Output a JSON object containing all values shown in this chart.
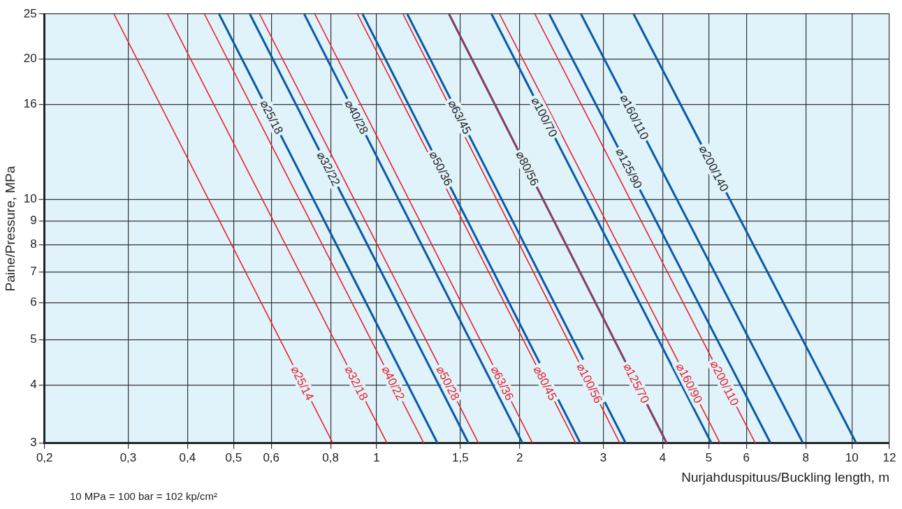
{
  "chart_data": {
    "type": "line",
    "xlabel": "Nurjahduspituus/Buckling length, m",
    "ylabel": "Paine/Pressure, MPa",
    "annotations": [
      "10 MPa = 100 bar = 102 kp/cm²"
    ],
    "log": "xy",
    "grid": true,
    "legend": false,
    "marker": "none",
    "line_style": "solid",
    "xlim": [
      0.2,
      12
    ],
    "ylim": [
      3,
      25
    ],
    "xticks": [
      {
        "value": 0.2,
        "label": "0,2"
      },
      {
        "value": 0.3,
        "label": "0,3"
      },
      {
        "value": 0.4,
        "label": "0,4"
      },
      {
        "value": 0.5,
        "label": "0,5"
      },
      {
        "value": 0.6,
        "label": "0,6"
      },
      {
        "value": 0.8,
        "label": "0,8"
      },
      1,
      {
        "value": 1.5,
        "label": "1,5"
      },
      2,
      3,
      4,
      5,
      6,
      8,
      10,
      12
    ],
    "yticks": [
      3,
      4,
      5,
      6,
      7,
      8,
      9,
      10,
      16,
      20,
      25
    ],
    "series": [
      {
        "name": "⌀25/18",
        "color": "#0a5aa5",
        "x": [
          0.466,
          1.343
        ],
        "values": [
          25,
          3
        ]
      },
      {
        "name": "⌀32/22",
        "color": "#0a5aa5",
        "x": [
          0.541,
          1.561
        ],
        "values": [
          25,
          3
        ]
      },
      {
        "name": "⌀40/28",
        "color": "#0a5aa5",
        "x": [
          0.704,
          2.028
        ],
        "values": [
          25,
          3
        ]
      },
      {
        "name": "⌀50/36",
        "color": "#0a5aa5",
        "x": [
          0.934,
          2.684
        ],
        "values": [
          25,
          3
        ]
      },
      {
        "name": "⌀63/45",
        "color": "#0a5aa5",
        "x": [
          1.16,
          3.344
        ],
        "values": [
          25,
          3
        ]
      },
      {
        "name": "⌀80/56",
        "color": "#0a5aa5",
        "x": [
          1.42,
          4.079
        ],
        "values": [
          25,
          3
        ]
      },
      {
        "name": "⌀100/70",
        "color": "#0a5aa5",
        "x": [
          1.745,
          5.066
        ],
        "values": [
          25,
          3
        ]
      },
      {
        "name": "⌀125/90",
        "color": "#0a5aa5",
        "x": [
          2.308,
          6.746
        ],
        "values": [
          25,
          3
        ]
      },
      {
        "name": "⌀160/110",
        "color": "#0a5aa5",
        "x": [
          2.692,
          7.896
        ],
        "values": [
          25,
          3
        ]
      },
      {
        "name": "⌀200/140",
        "color": "#0a5aa5",
        "x": [
          3.474,
          10.22
        ],
        "values": [
          25,
          3
        ]
      },
      {
        "name": "⌀25/14",
        "color": "#e8202a",
        "x": [
          0.28,
          0.809
        ],
        "values": [
          25,
          3
        ]
      },
      {
        "name": "⌀32/18",
        "color": "#e8202a",
        "x": [
          0.363,
          1.052
        ],
        "values": [
          25,
          3
        ]
      },
      {
        "name": "⌀40/22",
        "color": "#e8202a",
        "x": [
          0.434,
          1.257
        ],
        "values": [
          25,
          3
        ]
      },
      {
        "name": "⌀50/28",
        "color": "#e8202a",
        "x": [
          0.567,
          1.639
        ],
        "values": [
          25,
          3
        ]
      },
      {
        "name": "⌀63/36",
        "color": "#e8202a",
        "x": [
          0.741,
          2.129
        ],
        "values": [
          25,
          3
        ]
      },
      {
        "name": "⌀80/45",
        "color": "#e8202a",
        "x": [
          0.911,
          2.626
        ],
        "values": [
          25,
          3
        ]
      },
      {
        "name": "⌀100/56",
        "color": "#e8202a",
        "x": [
          1.136,
          3.25
        ],
        "values": [
          25,
          3
        ]
      },
      {
        "name": "⌀125/70",
        "color": "#e8202a",
        "x": [
          1.42,
          4.079
        ],
        "values": [
          25,
          3
        ]
      },
      {
        "name": "⌀160/90",
        "color": "#e8202a",
        "x": [
          1.814,
          5.284
        ],
        "values": [
          25,
          3
        ]
      },
      {
        "name": "⌀200/110",
        "color": "#e8202a",
        "x": [
          2.152,
          6.268
        ],
        "values": [
          25,
          3
        ]
      }
    ]
  }
}
